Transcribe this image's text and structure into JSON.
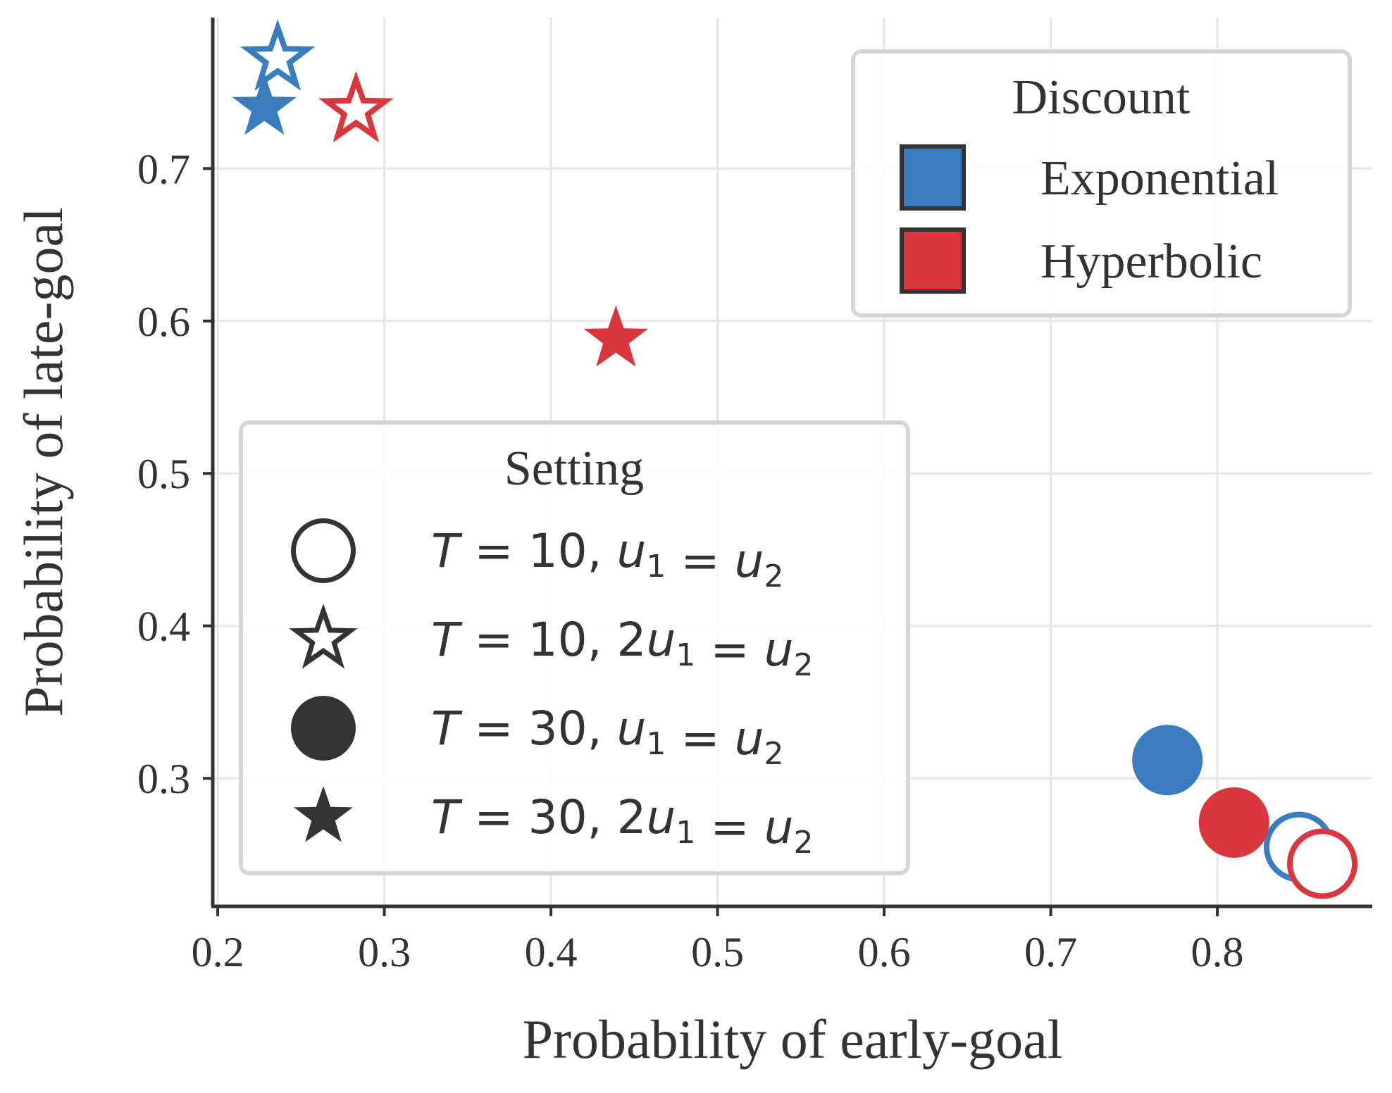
{
  "chart_data": {
    "type": "scatter",
    "xlabel": "Probability of early-goal",
    "ylabel": "Probability of late-goal",
    "xlim": [
      0.197,
      0.893
    ],
    "ylim": [
      0.216,
      0.799
    ],
    "x_ticks": [
      "0.2",
      "0.3",
      "0.4",
      "0.5",
      "0.6",
      "0.7",
      "0.8"
    ],
    "y_ticks": [
      "0.3",
      "0.4",
      "0.5",
      "0.6",
      "0.7"
    ],
    "grid": true,
    "colors": {
      "Exponential": "#3a7dbf",
      "Hyperbolic": "#d9373d",
      "neutral": "#333333"
    },
    "points": [
      {
        "discount": "Exponential",
        "setting": 0,
        "x": 0.849,
        "y": 0.255
      },
      {
        "discount": "Hyperbolic",
        "setting": 0,
        "x": 0.863,
        "y": 0.244
      },
      {
        "discount": "Exponential",
        "setting": 1,
        "x": 0.236,
        "y": 0.772
      },
      {
        "discount": "Hyperbolic",
        "setting": 1,
        "x": 0.283,
        "y": 0.738
      },
      {
        "discount": "Exponential",
        "setting": 2,
        "x": 0.77,
        "y": 0.312
      },
      {
        "discount": "Hyperbolic",
        "setting": 2,
        "x": 0.81,
        "y": 0.271
      },
      {
        "discount": "Exponential",
        "setting": 3,
        "x": 0.228,
        "y": 0.74
      },
      {
        "discount": "Hyperbolic",
        "setting": 3,
        "x": 0.439,
        "y": 0.588
      }
    ],
    "legend_discount": {
      "title": "Discount",
      "placement": "top-right",
      "items": [
        {
          "label": "Exponential",
          "color": "#3a7dbf"
        },
        {
          "label": "Hyperbolic",
          "color": "#d9373d"
        }
      ]
    },
    "legend_setting": {
      "title": "Setting",
      "placement": "lower-left",
      "items": [
        {
          "marker": "circle-open",
          "T": "10",
          "coef": ""
        },
        {
          "marker": "star-open",
          "T": "10",
          "coef": "2"
        },
        {
          "marker": "circle-filled",
          "T": "30",
          "coef": ""
        },
        {
          "marker": "star-filled",
          "T": "30",
          "coef": "2"
        }
      ]
    }
  }
}
